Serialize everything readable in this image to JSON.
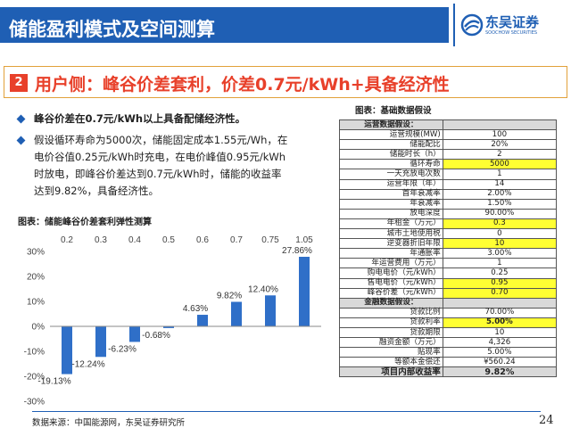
{
  "header": {
    "title": "储能盈利模式及空间测算",
    "logo_name": "东吴证券",
    "logo_sub": "SOOCHOW SECURITIES",
    "logo_en": "SOOCHOW SECURITIES",
    "color": "#1f5fb4"
  },
  "section": {
    "number": "2",
    "title": "用户侧：峰谷价差套利，价差0.7元/kWh+具备经济性",
    "color": "#e8402a"
  },
  "bullets": [
    {
      "lines": [
        "峰谷价差在0.7元/kWh以上具备配储经济性。"
      ]
    },
    {
      "lines": [
        "假设循环寿命为5000次，储能固定成本1.55元/Wh，在",
        "电价谷值0.25元/kWh时充电，在电价峰值0.95元/kWh",
        "时放电，即峰谷价差达到0.7元/kWh时，储能的收益率",
        "达到9.82%，具备经济性。"
      ]
    }
  ],
  "chart_title": "图表：储能峰谷价差套利弹性测算",
  "chart_data": {
    "type": "bar",
    "title": "图表：储能峰谷价差套利弹性测算",
    "categories": [
      "0.2",
      "0.3",
      "0.4",
      "0.5",
      "0.6",
      "0.7",
      "0.75",
      "1.05"
    ],
    "values": [
      -19.13,
      -12.24,
      -6.23,
      -0.68,
      4.63,
      9.82,
      12.4,
      27.86
    ],
    "labels": [
      "-19.13%",
      "-12.24%",
      "-6.23%",
      "-0.68%",
      "4.63%",
      "9.82%",
      "12.40%",
      "27.86%"
    ],
    "yticks": [
      "30%",
      "20%",
      "10%",
      "0%",
      "-10%",
      "-20%",
      "-30%"
    ],
    "ylim": [
      -30,
      30
    ],
    "xaxis_position": "top",
    "bar_color": "#2f6fc8"
  },
  "source": "数据来源：中国能源网，东吴证券研究所",
  "page_number": "24",
  "table": {
    "title": "图表：基础数据假设",
    "rows": [
      {
        "label": "运营数据假设：",
        "value": "",
        "type": "section"
      },
      {
        "label": "运营规模(MW)",
        "value": "100"
      },
      {
        "label": "储能配比",
        "value": "20%"
      },
      {
        "label": "储能时长（h）",
        "value": "2"
      },
      {
        "label": "循环寿命",
        "value": "5000",
        "highlight": true
      },
      {
        "label": "一天充放电次数",
        "value": "1"
      },
      {
        "label": "运营年限（年）",
        "value": "14"
      },
      {
        "label": "首年衰减率",
        "value": "2.00%"
      },
      {
        "label": "年衰减率",
        "value": "1.50%"
      },
      {
        "label": "放电深度",
        "value": "90.00%"
      },
      {
        "label": "年租金（万元）",
        "value": "0.3",
        "highlight": true
      },
      {
        "label": "城市土地使用税",
        "value": "0"
      },
      {
        "label": "逆变器折旧年限",
        "value": "10",
        "highlight": true
      },
      {
        "label": "年通胀率",
        "value": "3.00%"
      },
      {
        "label": "年运营费用（万元）",
        "value": "1"
      },
      {
        "label": "购电电价（元/kWh）",
        "value": "0.25"
      },
      {
        "label": "售电电价（元/kWh）",
        "value": "0.95",
        "highlight": true
      },
      {
        "label": "峰谷价差（元/kWh）",
        "value": "0.70",
        "highlight": true
      },
      {
        "label": "金融数据假设：",
        "value": "",
        "type": "section"
      },
      {
        "label": "贷款比例",
        "value": "70.00%"
      },
      {
        "label": "贷款利率",
        "value": "5.00%",
        "highlight": true,
        "bold": true
      },
      {
        "label": "贷款期限",
        "value": "10"
      },
      {
        "label": "融资金额（万元）",
        "value": "4,326"
      },
      {
        "label": "贴现率",
        "value": "5.00%"
      },
      {
        "label": "等额本金偿还",
        "value": "¥560.24"
      },
      {
        "label": "项目内部收益率",
        "value": "9.82%",
        "type": "final"
      }
    ]
  }
}
